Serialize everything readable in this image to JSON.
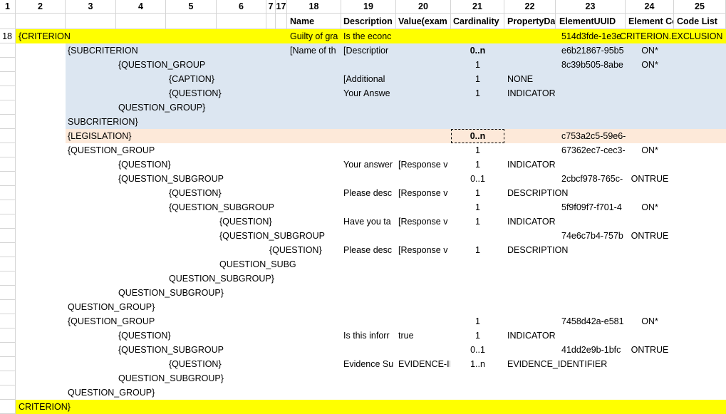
{
  "colors": {
    "highlight_yellow": "#FFFF00",
    "block_blue": "#DCE6F1",
    "block_peach": "#FDE9D9",
    "gridline": "#D5D5D5"
  },
  "sheet": {
    "column_numbers": [
      "1",
      "2",
      "3",
      "4",
      "5",
      "6",
      "7",
      "17",
      "18",
      "19",
      "20",
      "21",
      "22",
      "23",
      "24",
      "25"
    ],
    "field_headers": {
      "name": "Name",
      "description": "Description",
      "value": "Value(exam",
      "cardinality": "Cardinality",
      "property": "PropertyDat",
      "element_uuid": "ElementUUID",
      "element_code": "Element Co",
      "code_list": "Code List"
    },
    "rows": [
      {
        "row_num": "18",
        "marker": "{CRITERION",
        "indent": "col2",
        "bg": "yellow",
        "name": "Guilty of gra",
        "description": "Is the econc",
        "element_uuid": "514d3fde-1e3e",
        "element_code": "CRITERION.EXCLUSION",
        "element_code_wide": true
      },
      {
        "marker": "{SUBCRITERION",
        "indent": "col3",
        "bg": "blue",
        "name": "[Name of th",
        "description": "[Descriptior",
        "cardinality": "0..n",
        "cardinality_bold": true,
        "element_uuid": "e6b21867-95b5",
        "element_code": "ON*"
      },
      {
        "marker": "{QUESTION_GROUP",
        "indent": "col4",
        "bg": "blue",
        "cardinality": "1",
        "element_uuid": "8c39b505-8abe",
        "element_code": "ON*"
      },
      {
        "marker": "{CAPTION}",
        "indent": "col5",
        "bg": "blue",
        "description": "[Additional",
        "cardinality": "1",
        "property": "NONE"
      },
      {
        "marker": "{QUESTION}",
        "indent": "col5",
        "bg": "blue",
        "description": "Your Answe",
        "cardinality": "1",
        "property": "INDICATOR"
      },
      {
        "marker": "QUESTION_GROUP}",
        "indent": "col4",
        "bg": "blue"
      },
      {
        "marker": "SUBCRITERION}",
        "indent": "col3",
        "bg": "blue"
      },
      {
        "marker": "{LEGISLATION}",
        "indent": "col3",
        "bg": "peach",
        "cardinality": "0..n",
        "cardinality_bold": true,
        "cardinality_marquee": true,
        "element_uuid": "c753a2c5-59e6-"
      },
      {
        "marker": "{QUESTION_GROUP",
        "indent": "col3",
        "cardinality": "1",
        "element_uuid": "67362ec7-cec3-",
        "element_code": "ON*"
      },
      {
        "marker": "{QUESTION}",
        "indent": "col4",
        "description": "Your answer",
        "value": "[Response v",
        "cardinality": "1",
        "property": "INDICATOR"
      },
      {
        "marker": "{QUESTION_SUBGROUP",
        "indent": "col4",
        "cardinality": "0..1",
        "element_uuid": "2cbcf978-765c-",
        "element_code": "ONTRUE"
      },
      {
        "marker": "{QUESTION}",
        "indent": "col5",
        "description": "Please desc",
        "value": "[Response v",
        "cardinality": "1",
        "property": "DESCRIPTION"
      },
      {
        "marker": "{QUESTION_SUBGROUP",
        "indent": "col5",
        "cardinality": "1",
        "element_uuid": "5f9f09f7-f701-4",
        "element_code": "ON*"
      },
      {
        "marker": "{QUESTION}",
        "indent": "col6",
        "description": "Have you ta",
        "value": "[Response v",
        "cardinality": "1",
        "property": "INDICATOR"
      },
      {
        "marker": "{QUESTION_SUBGROUP",
        "indent": "col6",
        "element_uuid": "74e6c7b4-757b",
        "element_code": "ONTRUE"
      },
      {
        "marker": "{QUESTION}",
        "indent": "col7",
        "description": "Please desc",
        "value": "[Response v",
        "cardinality": "1",
        "property": "DESCRIPTION"
      },
      {
        "marker": "QUESTION_SUBG",
        "indent": "col6",
        "marker_clip": 112
      },
      {
        "marker": "QUESTION_SUBGROUP}",
        "indent": "col5"
      },
      {
        "marker": "QUESTION_SUBGROUP}",
        "indent": "col4"
      },
      {
        "marker": "QUESTION_GROUP}",
        "indent": "col3"
      },
      {
        "marker": "{QUESTION_GROUP",
        "indent": "col3",
        "cardinality": "1",
        "element_uuid": "7458d42a-e581",
        "element_code": "ON*"
      },
      {
        "marker": "{QUESTION}",
        "indent": "col4",
        "description": "Is this inforr",
        "value": "true",
        "cardinality": "1",
        "property": "INDICATOR"
      },
      {
        "marker": "{QUESTION_SUBGROUP",
        "indent": "col4",
        "cardinality": "0..1",
        "element_uuid": "41dd2e9b-1bfc",
        "element_code": "ONTRUE"
      },
      {
        "marker": "{QUESTION}",
        "indent": "col5",
        "description": "Evidence Su",
        "value": "EVIDENCE-II",
        "cardinality": "1..n",
        "property": "EVIDENCE_IDENTIFIER"
      },
      {
        "marker": "QUESTION_SUBGROUP}",
        "indent": "col4"
      },
      {
        "marker": "QUESTION_GROUP}",
        "indent": "col3"
      },
      {
        "marker": "CRITERION}",
        "indent": "col2",
        "bg": "yellow"
      }
    ]
  }
}
